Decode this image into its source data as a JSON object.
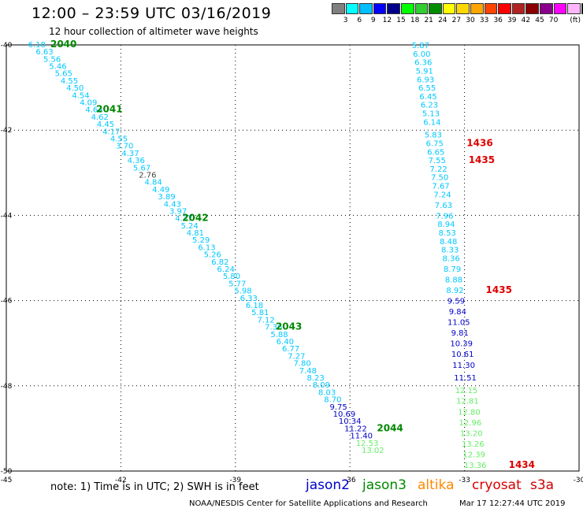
{
  "header": {
    "title": "12:00 – 23:59 UTC 03/16/2019",
    "subtitle": "12 hour collection of altimeter wave heights"
  },
  "colorbar": {
    "colors": [
      "#808080",
      "#00ffff",
      "#00bfff",
      "#0000ff",
      "#00008b",
      "#00ff00",
      "#32cd32",
      "#008b00",
      "#ffff00",
      "#ffd700",
      "#ffa500",
      "#ff4500",
      "#ff0000",
      "#b22222",
      "#8b0000",
      "#8b008b",
      "#ff00ff",
      "#ffb6ff",
      "#000000"
    ],
    "labels": [
      "3",
      "6",
      "9",
      "12",
      "15",
      "18",
      "21",
      "24",
      "27",
      "30",
      "33",
      "36",
      "39",
      "42",
      "45",
      "70",
      "(ft)"
    ]
  },
  "map": {
    "x_ticks": [
      "-45",
      "-42",
      "-39",
      "-36",
      "-33",
      "-30"
    ],
    "y_ticks": [
      "-40",
      "-42",
      "-44",
      "-46",
      "-48",
      "-50"
    ],
    "lon_range": [
      -45,
      -30
    ],
    "lat_range": [
      -50,
      -40
    ]
  },
  "level_colors": {
    "jason3_low": "#00c8ff",
    "mid": "#0000cc",
    "high": "#66ee66",
    "label_green": "#008800",
    "label_red": "#dd0000",
    "other": "#444444"
  },
  "tracks": [
    {
      "name": "jason3-2040",
      "points": [
        {
          "lon": -44.2,
          "lat": -39.98,
          "v": "6.18",
          "c": "jason3_low"
        },
        {
          "lon": -44.0,
          "lat": -40.15,
          "v": "6.63",
          "c": "jason3_low"
        },
        {
          "lon": -43.8,
          "lat": -40.32,
          "v": "5.56",
          "c": "jason3_low"
        },
        {
          "lon": -43.65,
          "lat": -40.49,
          "v": "5.46",
          "c": "jason3_low"
        },
        {
          "lon": -43.5,
          "lat": -40.66,
          "v": "5.65",
          "c": "jason3_low"
        },
        {
          "lon": -43.35,
          "lat": -40.83,
          "v": "4.55",
          "c": "jason3_low"
        },
        {
          "lon": -43.2,
          "lat": -41.0,
          "v": "4.50",
          "c": "jason3_low"
        },
        {
          "lon": -43.05,
          "lat": -41.17,
          "v": "4.54",
          "c": "jason3_low"
        },
        {
          "lon": -42.85,
          "lat": -41.34,
          "v": "4.09",
          "c": "jason3_low"
        },
        {
          "lon": -42.7,
          "lat": -41.51,
          "v": "4.64",
          "c": "jason3_low"
        },
        {
          "lon": -42.55,
          "lat": -41.68,
          "v": "4.62",
          "c": "jason3_low"
        },
        {
          "lon": -42.4,
          "lat": -41.85,
          "v": "4.45",
          "c": "jason3_low"
        },
        {
          "lon": -42.25,
          "lat": -42.02,
          "v": "4.17",
          "c": "jason3_low"
        },
        {
          "lon": -42.05,
          "lat": -42.19,
          "v": "4.55",
          "c": "jason3_low"
        },
        {
          "lon": -41.9,
          "lat": -42.36,
          "v": "3.70",
          "c": "jason3_low"
        },
        {
          "lon": -41.75,
          "lat": -42.53,
          "v": "4.37",
          "c": "jason3_low"
        },
        {
          "lon": -41.6,
          "lat": -42.7,
          "v": "4.36",
          "c": "jason3_low"
        },
        {
          "lon": -41.45,
          "lat": -42.87,
          "v": "5.67",
          "c": "jason3_low"
        },
        {
          "lon": -41.3,
          "lat": -43.04,
          "v": "2.76",
          "c": "other"
        },
        {
          "lon": -41.15,
          "lat": -43.21,
          "v": "4.84",
          "c": "jason3_low"
        },
        {
          "lon": -40.95,
          "lat": -43.38,
          "v": "4.49",
          "c": "jason3_low"
        },
        {
          "lon": -40.8,
          "lat": -43.55,
          "v": "3.89",
          "c": "jason3_low"
        },
        {
          "lon": -40.65,
          "lat": -43.72,
          "v": "4.43",
          "c": "jason3_low"
        },
        {
          "lon": -40.5,
          "lat": -43.89,
          "v": "3.97",
          "c": "jason3_low"
        },
        {
          "lon": -40.35,
          "lat": -44.06,
          "v": "4.37",
          "c": "jason3_low"
        },
        {
          "lon": -40.2,
          "lat": -44.23,
          "v": "5.24",
          "c": "jason3_low"
        },
        {
          "lon": -40.05,
          "lat": -44.4,
          "v": "4.81",
          "c": "jason3_low"
        },
        {
          "lon": -39.9,
          "lat": -44.57,
          "v": "5.29",
          "c": "jason3_low"
        },
        {
          "lon": -39.75,
          "lat": -44.74,
          "v": "6.13",
          "c": "jason3_low"
        },
        {
          "lon": -39.6,
          "lat": -44.91,
          "v": "5.26",
          "c": "jason3_low"
        },
        {
          "lon": -39.4,
          "lat": -45.08,
          "v": "6.82",
          "c": "jason3_low"
        },
        {
          "lon": -39.25,
          "lat": -45.25,
          "v": "6.24",
          "c": "jason3_low"
        },
        {
          "lon": -39.1,
          "lat": -45.42,
          "v": "5.80",
          "c": "jason3_low"
        },
        {
          "lon": -38.95,
          "lat": -45.59,
          "v": "5.77",
          "c": "jason3_low"
        },
        {
          "lon": -38.8,
          "lat": -45.76,
          "v": "5.98",
          "c": "jason3_low"
        },
        {
          "lon": -38.65,
          "lat": -45.93,
          "v": "6.33",
          "c": "jason3_low"
        },
        {
          "lon": -38.5,
          "lat": -46.1,
          "v": "6.18",
          "c": "jason3_low"
        },
        {
          "lon": -38.35,
          "lat": -46.27,
          "v": "5.81",
          "c": "jason3_low"
        },
        {
          "lon": -38.2,
          "lat": -46.44,
          "v": "7.12",
          "c": "jason3_low"
        },
        {
          "lon": -38.0,
          "lat": -46.61,
          "v": "7.36",
          "c": "jason3_low"
        },
        {
          "lon": -37.85,
          "lat": -46.78,
          "v": "5.88",
          "c": "jason3_low"
        },
        {
          "lon": -37.7,
          "lat": -46.95,
          "v": "6.40",
          "c": "jason3_low"
        },
        {
          "lon": -37.55,
          "lat": -47.12,
          "v": "6.77",
          "c": "jason3_low"
        },
        {
          "lon": -37.4,
          "lat": -47.29,
          "v": "7.27",
          "c": "jason3_low"
        },
        {
          "lon": -37.25,
          "lat": -47.46,
          "v": "7.80",
          "c": "jason3_low"
        },
        {
          "lon": -37.1,
          "lat": -47.63,
          "v": "7.48",
          "c": "jason3_low"
        },
        {
          "lon": -36.9,
          "lat": -47.8,
          "v": "8.23",
          "c": "jason3_low"
        },
        {
          "lon": -36.75,
          "lat": -47.97,
          "v": "8.09",
          "c": "jason3_low"
        },
        {
          "lon": -36.6,
          "lat": -48.14,
          "v": "8.03",
          "c": "jason3_low"
        },
        {
          "lon": -36.45,
          "lat": -48.31,
          "v": "8.70",
          "c": "jason3_low"
        },
        {
          "lon": -36.3,
          "lat": -48.48,
          "v": "9.75",
          "c": "mid"
        },
        {
          "lon": -36.15,
          "lat": -48.65,
          "v": "10.69",
          "c": "mid"
        },
        {
          "lon": -36.0,
          "lat": -48.82,
          "v": "10.34",
          "c": "mid"
        },
        {
          "lon": -35.85,
          "lat": -48.99,
          "v": "11.22",
          "c": "mid"
        },
        {
          "lon": -35.7,
          "lat": -49.16,
          "v": "11.40",
          "c": "mid"
        },
        {
          "lon": -35.55,
          "lat": -49.33,
          "v": "12.53",
          "c": "high"
        },
        {
          "lon": -35.4,
          "lat": -49.5,
          "v": "13.02",
          "c": "high"
        }
      ],
      "labels": [
        {
          "lon": -43.5,
          "lat": -39.98,
          "t": "2040",
          "c": "label_green"
        },
        {
          "lon": -42.3,
          "lat": -41.51,
          "t": "2041",
          "c": "label_green"
        },
        {
          "lon": -40.05,
          "lat": -44.06,
          "t": "2042",
          "c": "label_green"
        },
        {
          "lon": -37.6,
          "lat": -46.61,
          "t": "2043",
          "c": "label_green"
        },
        {
          "lon": -34.95,
          "lat": -48.99,
          "t": "2044",
          "c": "label_green"
        }
      ]
    },
    {
      "name": "cryosat-1435",
      "points": [
        {
          "lon": -34.15,
          "lat": -40.0,
          "v": "5.87",
          "c": "jason3_low"
        },
        {
          "lon": -34.12,
          "lat": -40.2,
          "v": "6.00",
          "c": "jason3_low"
        },
        {
          "lon": -34.08,
          "lat": -40.4,
          "v": "6.36",
          "c": "jason3_low"
        },
        {
          "lon": -34.05,
          "lat": -40.6,
          "v": "5.91",
          "c": "jason3_low"
        },
        {
          "lon": -34.02,
          "lat": -40.8,
          "v": "6.93",
          "c": "jason3_low"
        },
        {
          "lon": -33.98,
          "lat": -41.0,
          "v": "6.55",
          "c": "jason3_low"
        },
        {
          "lon": -33.95,
          "lat": -41.2,
          "v": "6.45",
          "c": "jason3_low"
        },
        {
          "lon": -33.92,
          "lat": -41.4,
          "v": "6.23",
          "c": "jason3_low"
        },
        {
          "lon": -33.88,
          "lat": -41.6,
          "v": "5.13",
          "c": "jason3_low"
        },
        {
          "lon": -33.85,
          "lat": -41.8,
          "v": "6.14",
          "c": "jason3_low"
        },
        {
          "lon": -33.82,
          "lat": -42.1,
          "v": "5.83",
          "c": "jason3_low"
        },
        {
          "lon": -33.78,
          "lat": -42.3,
          "v": "6.75",
          "c": "jason3_low"
        },
        {
          "lon": -33.75,
          "lat": -42.5,
          "v": "6.65",
          "c": "jason3_low"
        },
        {
          "lon": -33.72,
          "lat": -42.7,
          "v": "7.55",
          "c": "jason3_low"
        },
        {
          "lon": -33.68,
          "lat": -42.9,
          "v": "7.22",
          "c": "jason3_low"
        },
        {
          "lon": -33.65,
          "lat": -43.1,
          "v": "7.50",
          "c": "jason3_low"
        },
        {
          "lon": -33.62,
          "lat": -43.3,
          "v": "7.67",
          "c": "jason3_low"
        },
        {
          "lon": -33.58,
          "lat": -43.5,
          "v": "7.24",
          "c": "jason3_low"
        },
        {
          "lon": -33.55,
          "lat": -43.75,
          "v": "7.63",
          "c": "jason3_low"
        },
        {
          "lon": -33.52,
          "lat": -44.0,
          "v": "7.96",
          "c": "jason3_low"
        },
        {
          "lon": -33.48,
          "lat": -44.2,
          "v": "8.94",
          "c": "jason3_low"
        },
        {
          "lon": -33.45,
          "lat": -44.4,
          "v": "8.53",
          "c": "jason3_low"
        },
        {
          "lon": -33.42,
          "lat": -44.6,
          "v": "8.48",
          "c": "jason3_low"
        },
        {
          "lon": -33.38,
          "lat": -44.8,
          "v": "8.33",
          "c": "jason3_low"
        },
        {
          "lon": -33.35,
          "lat": -45.0,
          "v": "8.36",
          "c": "jason3_low"
        },
        {
          "lon": -33.32,
          "lat": -45.25,
          "v": "8.79",
          "c": "jason3_low"
        },
        {
          "lon": -33.28,
          "lat": -45.5,
          "v": "8.88",
          "c": "jason3_low"
        },
        {
          "lon": -33.25,
          "lat": -45.75,
          "v": "8.92",
          "c": "jason3_low"
        },
        {
          "lon": -33.22,
          "lat": -46.0,
          "v": "9.59",
          "c": "mid"
        },
        {
          "lon": -33.18,
          "lat": -46.25,
          "v": "9.84",
          "c": "mid"
        },
        {
          "lon": -33.15,
          "lat": -46.5,
          "v": "11.05",
          "c": "mid"
        },
        {
          "lon": -33.12,
          "lat": -46.75,
          "v": "9.81",
          "c": "mid"
        },
        {
          "lon": -33.08,
          "lat": -47.0,
          "v": "10.39",
          "c": "mid"
        },
        {
          "lon": -33.05,
          "lat": -47.25,
          "v": "10.61",
          "c": "mid"
        },
        {
          "lon": -33.02,
          "lat": -47.5,
          "v": "11.30",
          "c": "mid"
        },
        {
          "lon": -32.98,
          "lat": -47.8,
          "v": "11.51",
          "c": "mid"
        },
        {
          "lon": -32.95,
          "lat": -48.1,
          "v": "12.15",
          "c": "high"
        },
        {
          "lon": -32.92,
          "lat": -48.35,
          "v": "12.81",
          "c": "high"
        },
        {
          "lon": -32.88,
          "lat": -48.6,
          "v": "12.80",
          "c": "high"
        },
        {
          "lon": -32.85,
          "lat": -48.85,
          "v": "12.96",
          "c": "high"
        },
        {
          "lon": -32.82,
          "lat": -49.1,
          "v": "13.20",
          "c": "high"
        },
        {
          "lon": -32.78,
          "lat": -49.35,
          "v": "13.26",
          "c": "high"
        },
        {
          "lon": -32.75,
          "lat": -49.6,
          "v": "12.39",
          "c": "high"
        },
        {
          "lon": -32.72,
          "lat": -49.85,
          "v": "13.36",
          "c": "high"
        }
      ],
      "labels": [
        {
          "lon": -32.6,
          "lat": -42.3,
          "t": "1436",
          "c": "label_red"
        },
        {
          "lon": -32.55,
          "lat": -42.7,
          "t": "1435",
          "c": "label_red"
        },
        {
          "lon": -32.1,
          "lat": -45.75,
          "t": "1435",
          "c": "label_red"
        },
        {
          "lon": -31.5,
          "lat": -49.85,
          "t": "1434",
          "c": "label_red"
        }
      ]
    }
  ],
  "footer": {
    "note": "note: 1) Time is in UTC; 2) SWH is in feet",
    "legend": [
      {
        "name": "jason2",
        "color": "#0000cc"
      },
      {
        "name": "jason3",
        "color": "#008800"
      },
      {
        "name": "altika",
        "color": "#ff8800"
      },
      {
        "name": "cryosat",
        "color": "#dd0000"
      },
      {
        "name": "s3a",
        "color": "#cc0000"
      }
    ],
    "credit": "NOAA/NESDIS Center for Satellite Applications and Research",
    "timestamp": "Mar 17 12:27:44 UTC 2019"
  }
}
